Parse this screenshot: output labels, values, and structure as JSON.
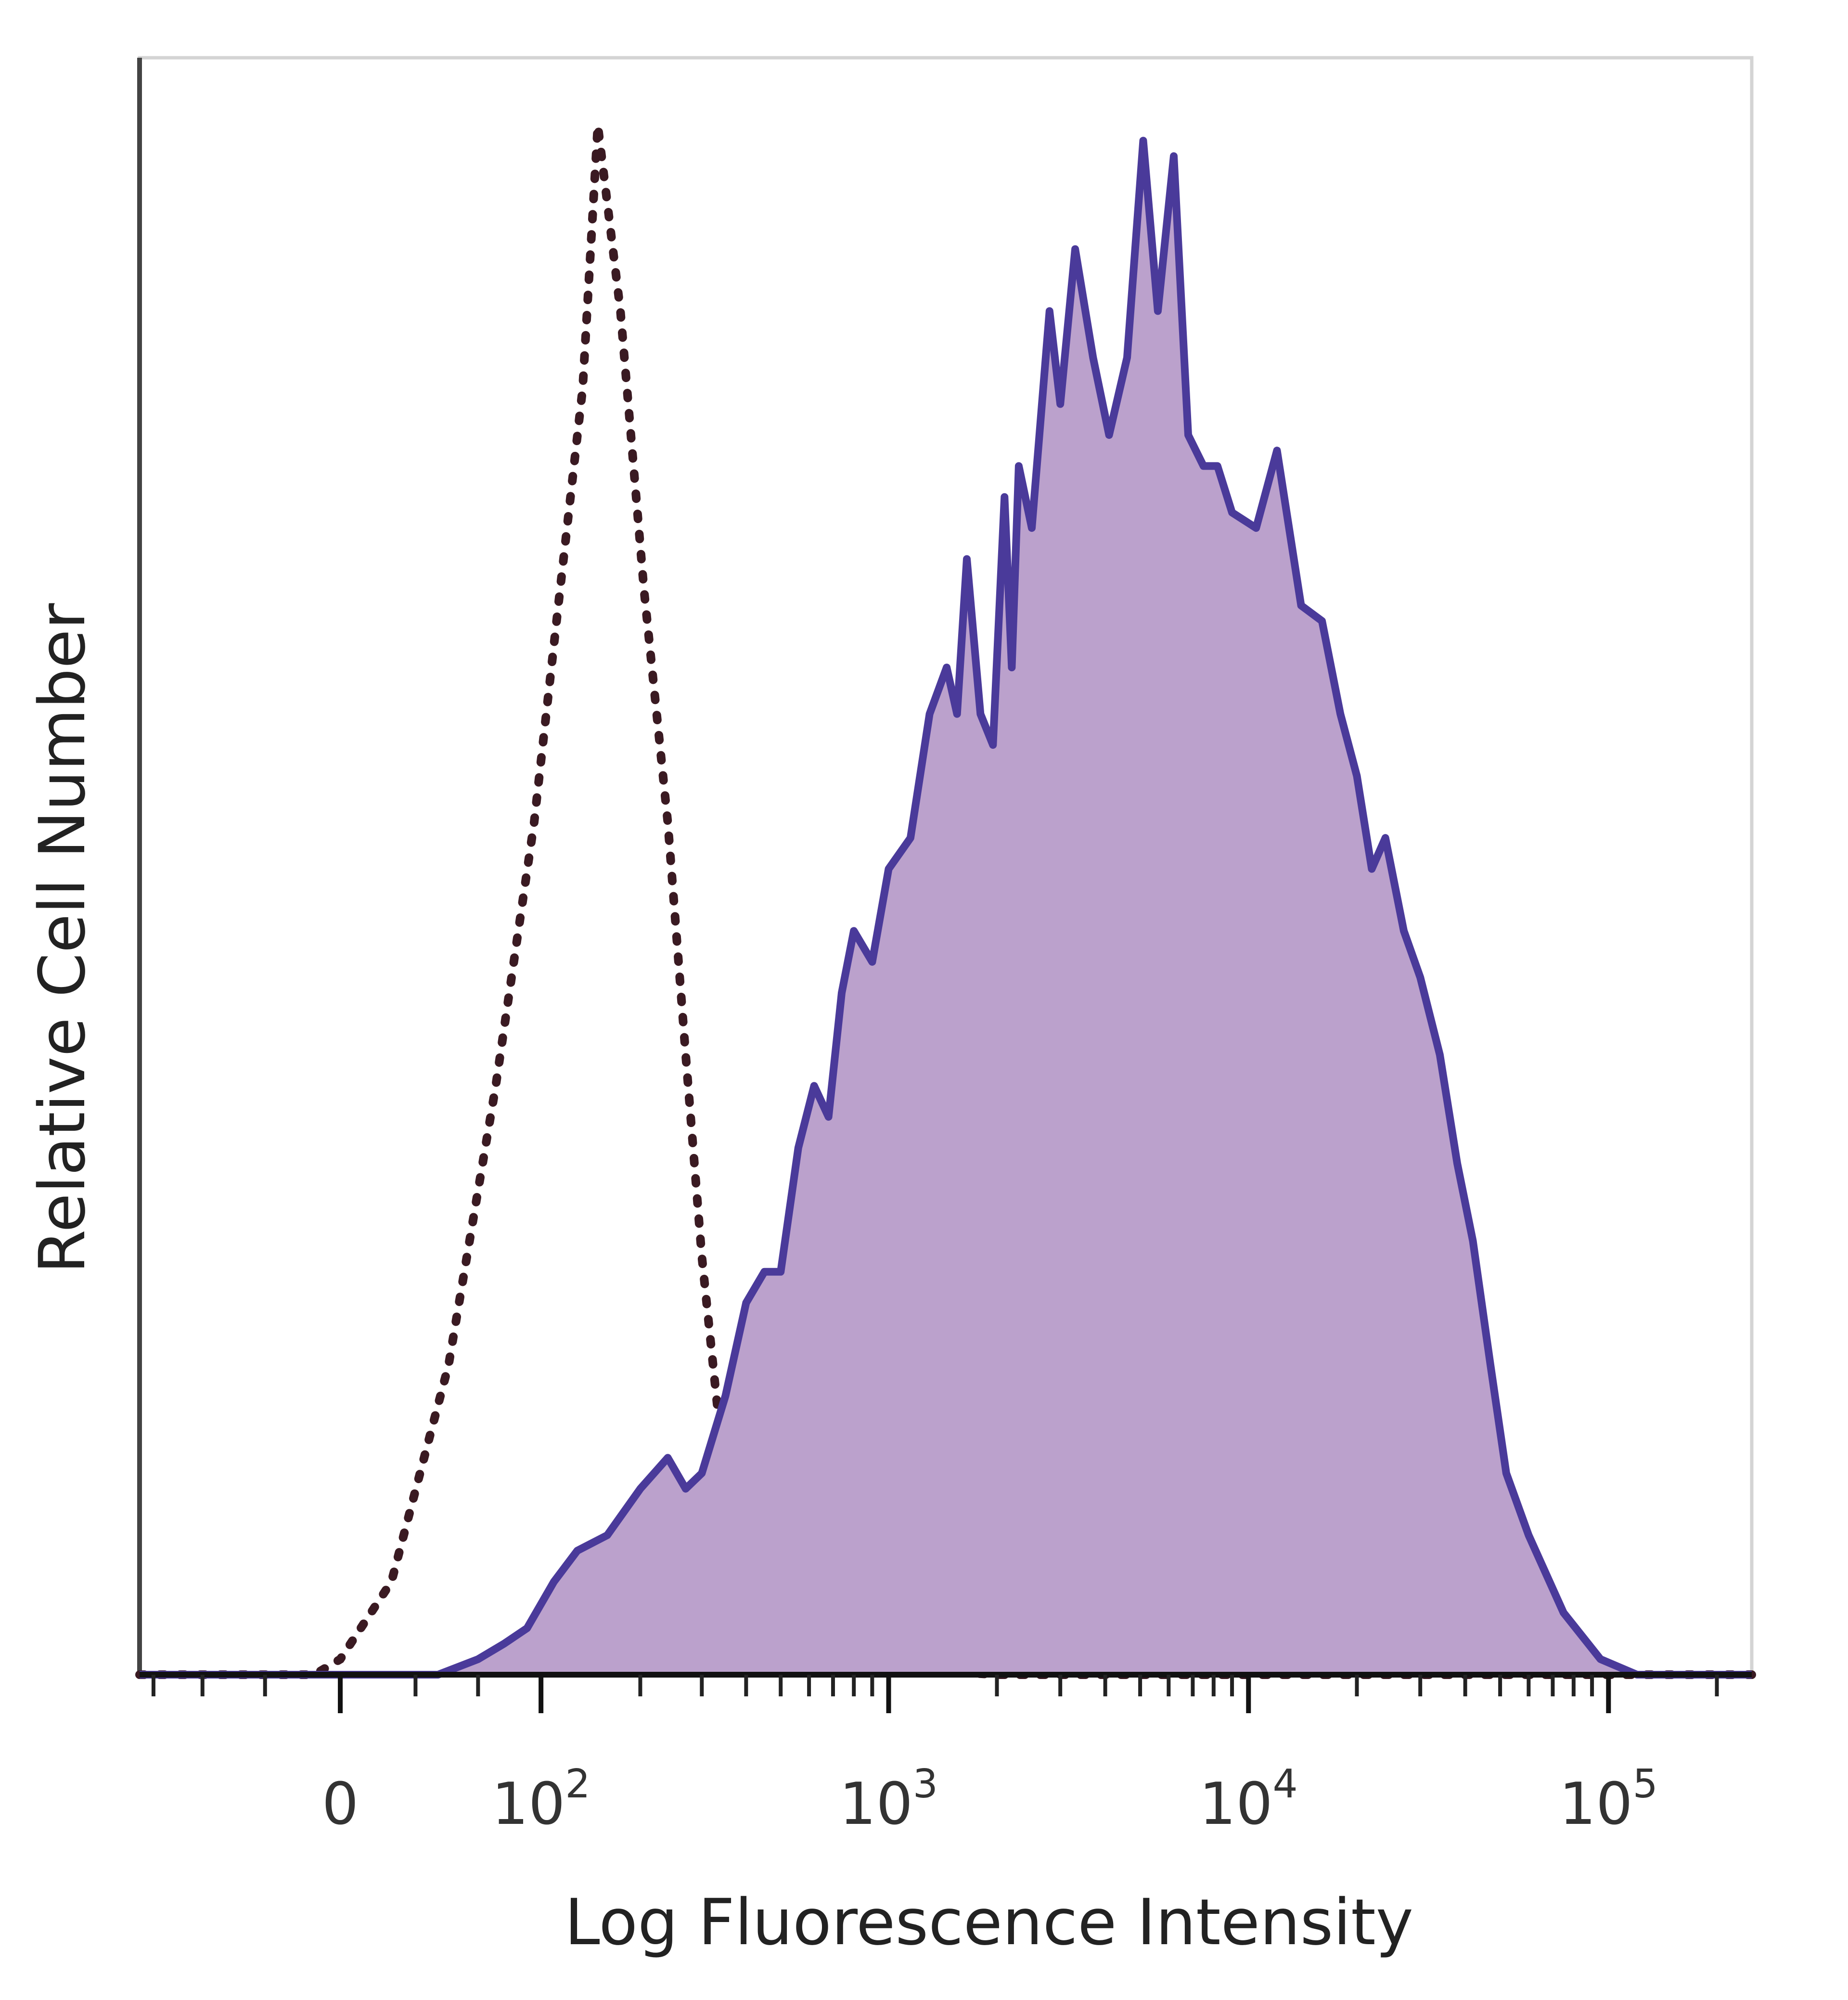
{
  "chart_data": {
    "type": "area",
    "title": "",
    "xlabel": "Log Fluorescence Intensity",
    "ylabel": "Relative Cell Number",
    "x_scale": "biexponential",
    "xlim": [
      -100,
      250000
    ],
    "ylim": [
      0,
      100
    ],
    "x_ticks": [
      {
        "value": 0,
        "label": "0",
        "base": "0",
        "exp": ""
      },
      {
        "value": 100,
        "label": "10^2",
        "base": "10",
        "exp": "2"
      },
      {
        "value": 1000,
        "label": "10^3",
        "base": "10",
        "exp": "3"
      },
      {
        "value": 10000,
        "label": "10^4",
        "base": "10",
        "exp": "4"
      },
      {
        "value": 100000,
        "label": "10^5",
        "base": "10",
        "exp": "5"
      }
    ],
    "grid": false,
    "legend": "none",
    "series": [
      {
        "style": "dotted",
        "fill": false,
        "color": "#3a1a22",
        "x": [
          -100,
          -10,
          0,
          20,
          45,
          70,
          95,
          115,
          135,
          150,
          175,
          205,
          240,
          270,
          300,
          340,
          390,
          450,
          520,
          650,
          900,
          2000,
          10000,
          50000,
          250000
        ],
        "y": [
          0,
          0,
          1,
          6,
          20,
          38,
          55,
          70,
          83,
          100,
          88,
          70,
          55,
          40,
          27,
          15,
          9,
          5,
          3,
          1.5,
          0.5,
          0,
          0,
          0,
          0
        ]
      },
      {
        "style": "solid",
        "fill": true,
        "color": "#4a3a9a",
        "fill_color": "#bba1cc",
        "x": [
          -100,
          0,
          40,
          60,
          75,
          90,
          110,
          130,
          160,
          200,
          240,
          270,
          300,
          350,
          400,
          450,
          500,
          560,
          620,
          680,
          740,
          800,
          900,
          1000,
          1150,
          1300,
          1450,
          1550,
          1650,
          1800,
          1950,
          2100,
          2200,
          2300,
          2500,
          2800,
          3000,
          3300,
          3700,
          4100,
          4600,
          5100,
          5600,
          6200,
          6800,
          7500,
          8200,
          9000,
          10500,
          12000,
          14000,
          16000,
          18000,
          20000,
          22000,
          24000,
          27000,
          30000,
          34000,
          38000,
          42000,
          47000,
          52000,
          60000,
          75000,
          95000,
          120000,
          150000,
          250000
        ],
        "y": [
          0,
          0,
          0,
          1,
          2,
          3,
          6,
          8,
          9,
          12,
          14,
          12,
          13,
          18,
          24,
          26,
          26,
          34,
          38,
          36,
          44,
          48,
          46,
          52,
          54,
          62,
          65,
          62,
          72,
          62,
          60,
          76,
          65,
          78,
          74,
          88,
          82,
          92,
          85,
          80,
          85,
          99,
          88,
          98,
          80,
          78,
          78,
          75,
          74,
          79,
          69,
          68,
          62,
          58,
          52,
          54,
          48,
          45,
          40,
          33,
          28,
          20,
          13,
          9,
          4,
          1,
          0,
          0,
          0
        ]
      }
    ]
  }
}
